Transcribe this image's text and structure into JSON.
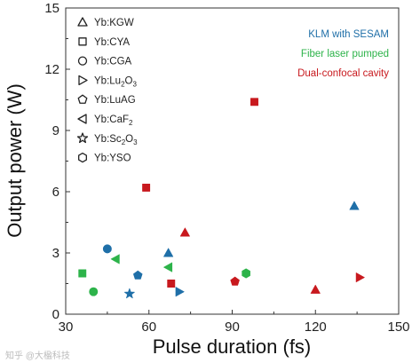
{
  "chart_data": {
    "type": "scatter",
    "xlabel": "Pulse duration (fs)",
    "ylabel": "Output power (W)",
    "xlim": [
      30,
      150
    ],
    "ylim": [
      0,
      15
    ],
    "xticks": [
      "30",
      "60",
      "90",
      "120",
      "150"
    ],
    "yticks": [
      "0",
      "3",
      "6",
      "9",
      "12",
      "15"
    ],
    "grid": false,
    "legend_position": "top-left",
    "legend": [
      {
        "marker": "triangle-up",
        "label": "Yb:KGW"
      },
      {
        "marker": "square",
        "label": "Yb:CYA"
      },
      {
        "marker": "circle",
        "label": "Yb:CGA"
      },
      {
        "marker": "triangle-right",
        "label": "Yb:Lu",
        "sub": "2",
        "label_tail": "O",
        "sub2": "3"
      },
      {
        "marker": "pentagon",
        "label": "Yb:LuAG"
      },
      {
        "marker": "triangle-left",
        "label": "Yb:CaF",
        "sub": "2"
      },
      {
        "marker": "star",
        "label": "Yb:Sc",
        "sub": "2",
        "label_tail": "O",
        "sub2": "3"
      },
      {
        "marker": "hexagon",
        "label": "Yb:YSO"
      }
    ],
    "categories": [
      {
        "name": "KLM with SESAM",
        "color": "#1f6fa8"
      },
      {
        "name": "Fiber laser pumped",
        "color": "#2db34a"
      },
      {
        "name": "Dual-confocal cavity",
        "color": "#c8191e"
      }
    ],
    "points": [
      {
        "x": 45,
        "y": 3.2,
        "marker": "circle",
        "category": 0
      },
      {
        "x": 67,
        "y": 3.0,
        "marker": "triangle-up",
        "category": 0
      },
      {
        "x": 56,
        "y": 1.9,
        "marker": "pentagon",
        "category": 0
      },
      {
        "x": 53,
        "y": 1.0,
        "marker": "star",
        "category": 0
      },
      {
        "x": 71,
        "y": 1.1,
        "marker": "triangle-right",
        "category": 0
      },
      {
        "x": 134,
        "y": 5.3,
        "marker": "triangle-up",
        "category": 0
      },
      {
        "x": 36,
        "y": 2.0,
        "marker": "square",
        "category": 1
      },
      {
        "x": 40,
        "y": 1.1,
        "marker": "circle",
        "category": 1
      },
      {
        "x": 48,
        "y": 2.7,
        "marker": "triangle-left",
        "category": 1
      },
      {
        "x": 67,
        "y": 2.3,
        "marker": "triangle-left",
        "category": 1
      },
      {
        "x": 95,
        "y": 2.0,
        "marker": "hexagon",
        "category": 1
      },
      {
        "x": 59,
        "y": 6.2,
        "marker": "square",
        "category": 2
      },
      {
        "x": 98,
        "y": 10.4,
        "marker": "square",
        "category": 2
      },
      {
        "x": 73,
        "y": 4.0,
        "marker": "triangle-up",
        "category": 2
      },
      {
        "x": 68,
        "y": 1.5,
        "marker": "square",
        "category": 2
      },
      {
        "x": 91,
        "y": 1.6,
        "marker": "pentagon",
        "category": 2
      },
      {
        "x": 120,
        "y": 1.2,
        "marker": "triangle-up",
        "category": 2
      },
      {
        "x": 136,
        "y": 1.8,
        "marker": "triangle-right",
        "category": 2
      }
    ]
  },
  "watermark": "知乎 @大楹科技"
}
